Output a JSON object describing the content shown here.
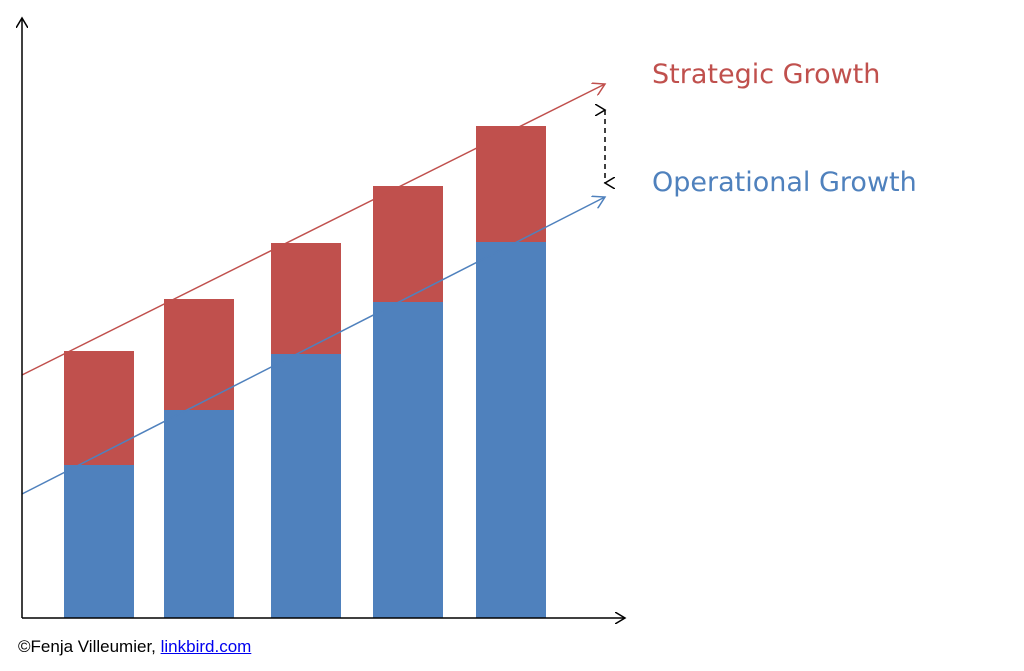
{
  "colors": {
    "strategic": "#C0504D",
    "operational": "#4F81BD",
    "axis": "#000000",
    "background": "#ffffff"
  },
  "legend": {
    "strategic_label": "Strategic Growth",
    "operational_label": "Operational Growth"
  },
  "credit": {
    "text": "©Fenja Villeumier, ",
    "link_text": "linkbird.com"
  },
  "chart_data": {
    "type": "bar",
    "stacked": true,
    "categories": [
      "",
      "",
      "",
      "",
      ""
    ],
    "series": [
      {
        "name": "Operational Growth",
        "values": [
          15.3,
          20.8,
          26.4,
          31.6,
          37.6
        ]
      },
      {
        "name": "Strategic Growth",
        "values": [
          11.4,
          11.1,
          11.1,
          11.6,
          11.6
        ]
      }
    ],
    "ylim": [
      0,
      60
    ],
    "xlabel": "",
    "ylabel": "",
    "title": "",
    "grid": false,
    "legend_position": "right",
    "trend_lines": [
      {
        "name": "Strategic Growth",
        "from_total": 24.3,
        "to_total": 53.4
      },
      {
        "name": "Operational Growth",
        "from_total": 12.4,
        "to_total": 42.1
      }
    ]
  }
}
